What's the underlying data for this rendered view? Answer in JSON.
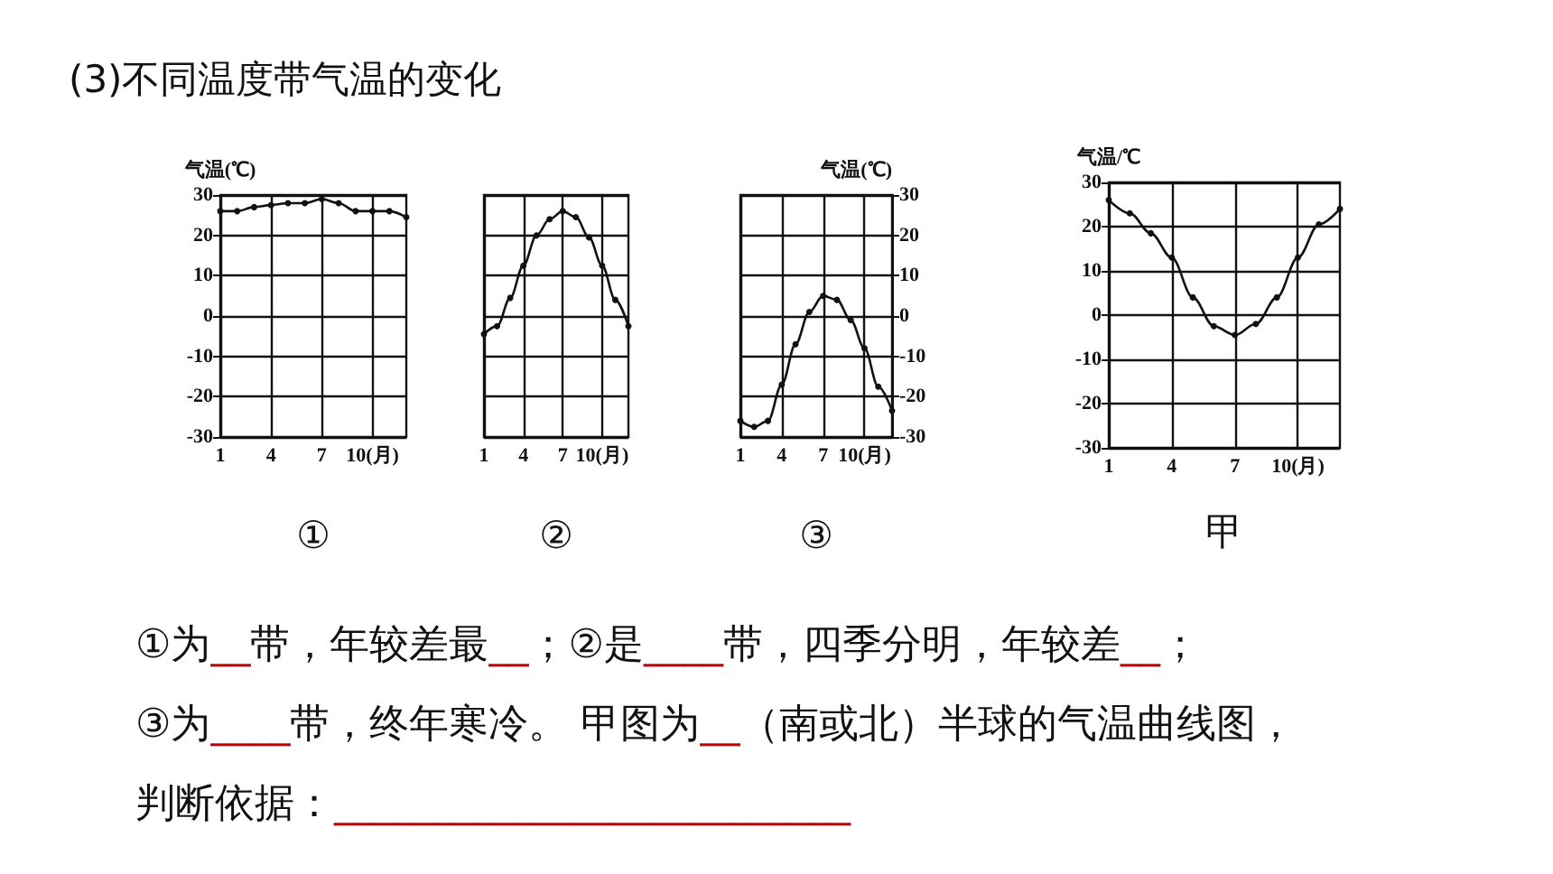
{
  "chart_data": [
    {
      "type": "line",
      "ylabel": "气温(℃)",
      "xlabel": "①",
      "categories": [
        "1",
        null,
        null,
        "4",
        null,
        null,
        "7",
        null,
        null,
        "10(月)",
        null,
        null
      ],
      "series": [
        {
          "color": "#111111",
          "values": [
            26,
            26,
            27,
            27.5,
            28,
            28,
            29,
            28,
            26,
            26,
            26,
            24.5
          ]
        }
      ],
      "ylim": [
        -30,
        30
      ],
      "yticks": [
        -30,
        -20,
        -10,
        0,
        10,
        20,
        30
      ],
      "grid": true,
      "marker": "circle",
      "line_style": "solid"
    },
    {
      "type": "line",
      "xlabel": "②",
      "categories": [
        "1",
        null,
        null,
        "4",
        null,
        null,
        "7",
        null,
        null,
        "10(月)",
        null,
        null
      ],
      "series": [
        {
          "color": "#111111",
          "values": [
            -4.5,
            -2.5,
            4.5,
            12.5,
            20,
            24,
            26,
            24.5,
            19.5,
            12.5,
            4,
            -2.5
          ]
        }
      ],
      "ylim": [
        -30,
        30
      ],
      "yticks": [
        -30,
        -20,
        -10,
        0,
        10,
        20,
        30
      ],
      "tick_labels": "x",
      "grid": true,
      "marker": "circle",
      "line_style": "solid"
    },
    {
      "type": "line",
      "ylabel": "气温(℃)",
      "xlabel": "③",
      "categories": [
        "1",
        null,
        null,
        "4",
        null,
        null,
        "7",
        null,
        null,
        "10(月)",
        null,
        null
      ],
      "series": [
        {
          "color": "#111111",
          "values": [
            -26,
            -27.5,
            -26,
            -17,
            -7,
            1,
            5,
            4,
            -1,
            -8,
            -17.5,
            -23.5
          ]
        }
      ],
      "ylim": [
        -30,
        30
      ],
      "yticks": [
        -30,
        -20,
        -10,
        0,
        10,
        20,
        30
      ],
      "grid": true,
      "marker": "circle",
      "line_style": "solid"
    },
    {
      "type": "line",
      "ylabel": "气温/℃",
      "xlabel": "甲",
      "categories": [
        "1",
        null,
        null,
        "4",
        null,
        null,
        "7",
        null,
        null,
        "10(月)",
        null,
        null
      ],
      "series": [
        {
          "color": "#111111",
          "values": [
            26,
            23,
            18.5,
            13,
            4,
            -2.5,
            -4.5,
            -2,
            4,
            13,
            20.5,
            24
          ]
        }
      ],
      "ylim": [
        -30,
        30
      ],
      "yticks": [
        -30,
        -20,
        -10,
        0,
        10,
        20,
        30
      ],
      "grid": true,
      "marker": "circle",
      "line_style": "solid"
    },
    {
      "type": "other",
      "title": "(3)不同温度带气温的变化",
      "annotations": [
        "①为__带，年较差最__；②是____带，四季分明，年较差__；",
        "③为____带，终年寒冷。 甲图为__（南或北）半球的气温曲线图，",
        "判断依据：__________________________"
      ]
    }
  ]
}
